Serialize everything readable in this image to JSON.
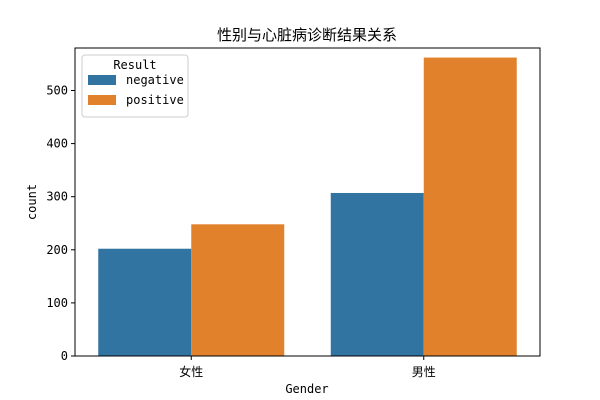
{
  "chart_data": {
    "type": "bar",
    "title": "性别与心脏病诊断结果关系",
    "xlabel": "Gender",
    "ylabel": "count",
    "categories": [
      "女性",
      "男性"
    ],
    "series": [
      {
        "name": "negative",
        "values": [
          202,
          307
        ]
      },
      {
        "name": "positive",
        "values": [
          248,
          562
        ]
      }
    ],
    "ylim": [
      0,
      580
    ],
    "yticks": [
      0,
      100,
      200,
      300,
      400,
      500
    ],
    "grid": false,
    "legend": {
      "title": "Result",
      "placement": "top-left"
    },
    "colors": {
      "negative": "#3274a1",
      "positive": "#e1812c"
    }
  }
}
